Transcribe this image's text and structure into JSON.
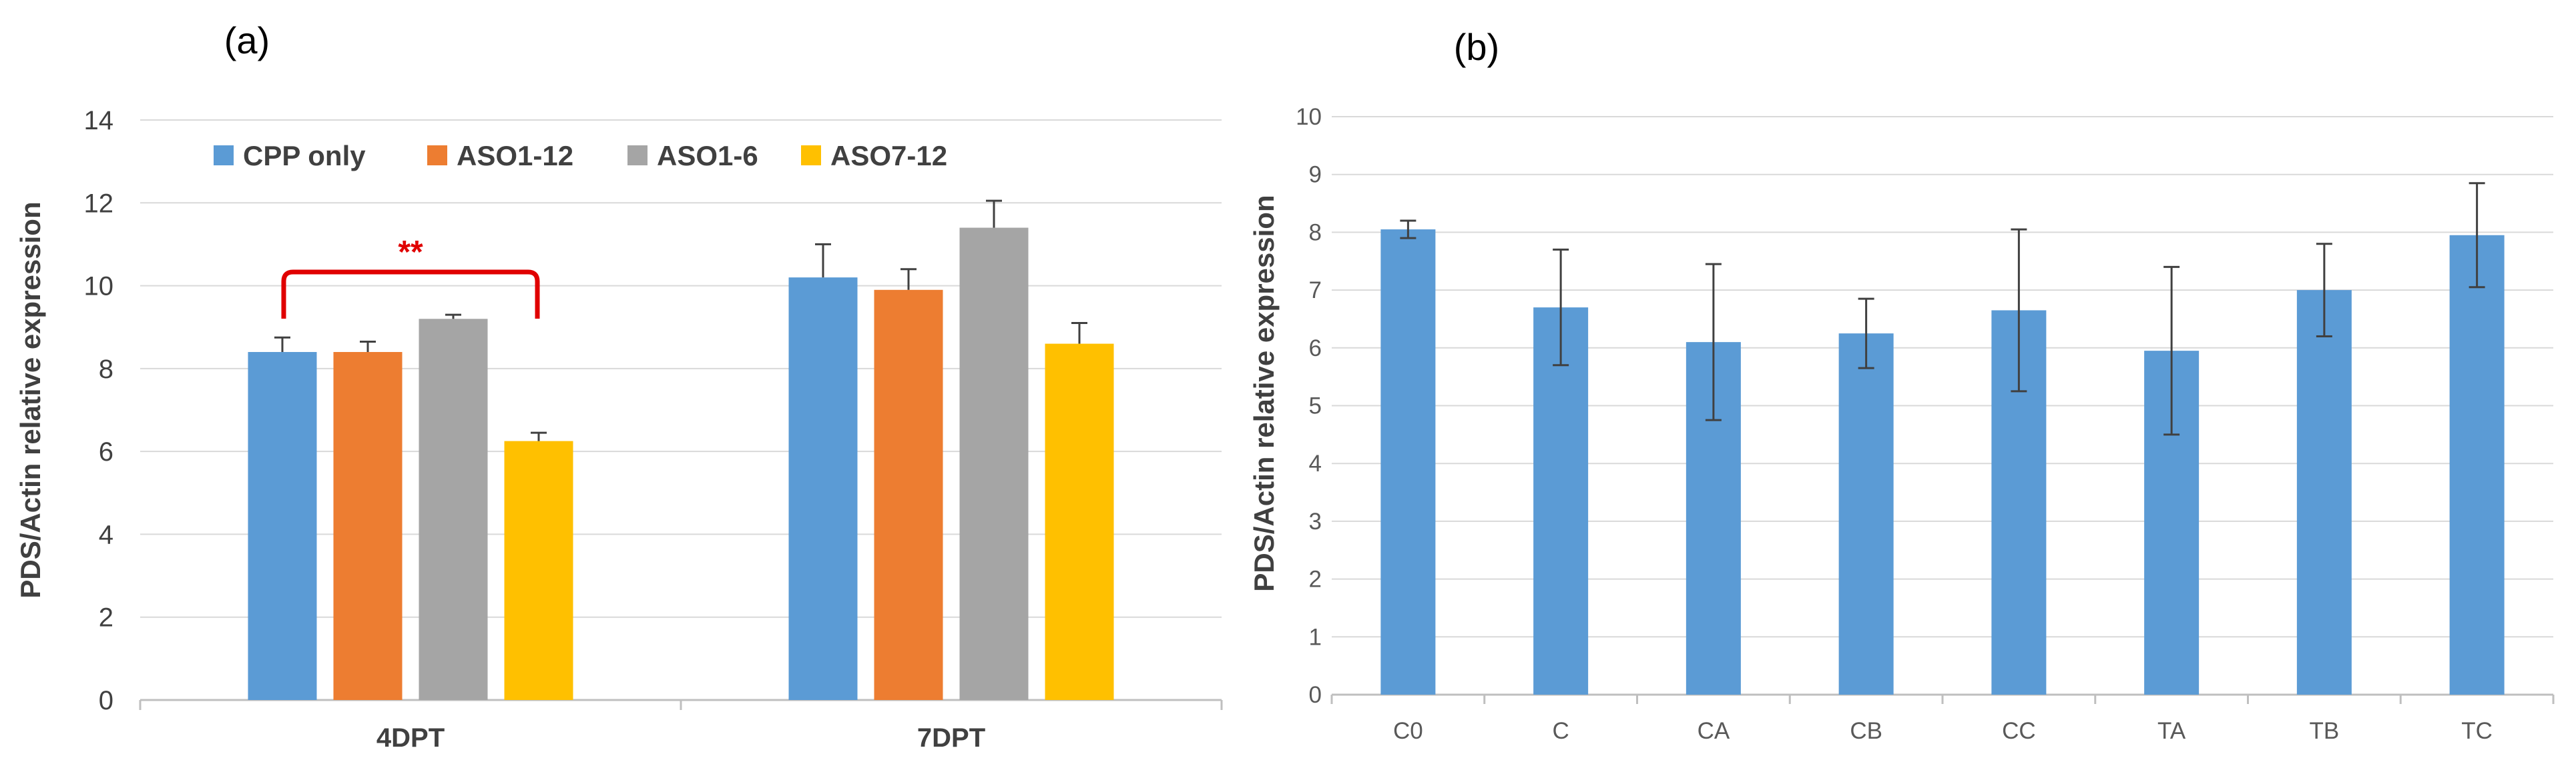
{
  "chart_data": [
    {
      "panel_label": "(a)",
      "type": "bar",
      "categories": [
        "4DPT",
        "7DPT"
      ],
      "series": [
        {
          "name": "CPP only",
          "color": "#5b9bd5",
          "values": [
            8.4,
            10.2
          ],
          "errors": [
            0.35,
            0.8
          ]
        },
        {
          "name": "ASO1-12",
          "color": "#ed7d31",
          "values": [
            8.4,
            9.9
          ],
          "errors": [
            0.25,
            0.5
          ]
        },
        {
          "name": "ASO1-6",
          "color": "#a5a5a5",
          "values": [
            9.2,
            11.4
          ],
          "errors": [
            0.1,
            0.65
          ]
        },
        {
          "name": "ASO7-12",
          "color": "#ffc000",
          "values": [
            6.25,
            8.6
          ],
          "errors": [
            0.2,
            0.5
          ]
        }
      ],
      "ylabel": "PDS/Actin relative expression",
      "xlabel": "",
      "ylim": [
        0,
        14
      ],
      "yticks": [
        "0",
        "2",
        "4",
        "6",
        "8",
        "10",
        "12",
        "14"
      ],
      "gridlines": true,
      "legend_position": "top",
      "annotation": {
        "text": "**",
        "color": "#e00000",
        "between": [
          "CPP only",
          "ASO7-12"
        ],
        "category": "4DPT"
      }
    },
    {
      "panel_label": "(b)",
      "type": "bar",
      "categories": [
        "C0",
        "C",
        "CA",
        "CB",
        "CC",
        "TA",
        "TB",
        "TC"
      ],
      "series": [
        {
          "name": "PDS/Actin relative expression",
          "color": "#5b9bd5",
          "values": [
            8.05,
            6.7,
            6.1,
            6.25,
            6.65,
            5.95,
            7.0,
            7.95
          ],
          "errors": [
            0.15,
            1.0,
            1.35,
            0.6,
            1.4,
            1.45,
            0.8,
            0.9
          ]
        }
      ],
      "ylabel": "PDS/Actin relative expression",
      "xlabel": "",
      "ylim": [
        0,
        10
      ],
      "yticks": [
        "0",
        "1",
        "2",
        "3",
        "4",
        "5",
        "6",
        "7",
        "8",
        "9",
        "10"
      ],
      "gridlines": true
    }
  ]
}
